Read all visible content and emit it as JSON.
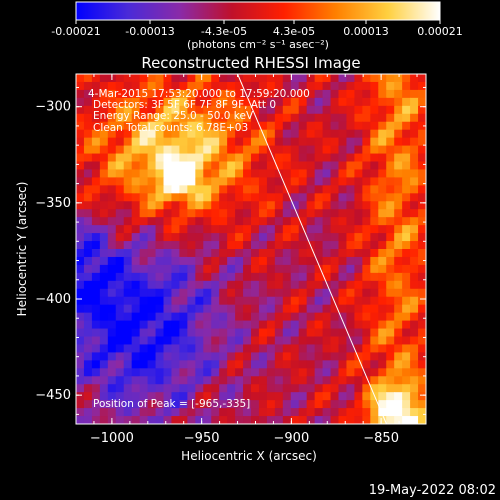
{
  "colorbar": {
    "ticks": [
      "-0.00021",
      "-0.00013",
      "-4.3e-05",
      "4.3e-05",
      "0.00013",
      "0.00021"
    ],
    "units": "(photons cm⁻² s⁻¹ asec⁻²)"
  },
  "title": "Reconstructed RHESSI Image",
  "overlay": {
    "time": "4-Mar-2015 17:53:20.000 to 17:59:20.000",
    "detectors": "Detectors: 3F 5F 6F 7F 8F 9F, Att 0",
    "energy": "Energy Range: 25.0 - 50.0 keV",
    "clean": "Clean    Total counts: 6.78E+03",
    "peak": "Position of Peak = [-965,-335]"
  },
  "footer_date": "19-May-2022 08:02",
  "colors": {
    "background": "#000000",
    "colormap": [
      "#0000ff",
      "#4a2ad8",
      "#8a2aa8",
      "#c0102a",
      "#ff2000",
      "#ff8000",
      "#ffd040",
      "#ffffff"
    ]
  },
  "chart_data": {
    "type": "heatmap",
    "title": "Reconstructed RHESSI Image",
    "xlabel": "Heliocentric X (arcsec)",
    "ylabel": "Heliocentric Y (arcsec)",
    "xlim": [
      -1020,
      -825
    ],
    "ylim": [
      -465,
      -283
    ],
    "x_ticks": [
      -1000,
      -950,
      -900,
      -850
    ],
    "y_ticks": [
      -450,
      -400,
      -350,
      -300
    ],
    "colorbar_range": [
      -0.00021,
      0.00021
    ],
    "peak_position": [
      -965,
      -335
    ],
    "limb_line": {
      "x": [
        -930,
        -847
      ],
      "y": [
        -283,
        -465
      ]
    }
  }
}
